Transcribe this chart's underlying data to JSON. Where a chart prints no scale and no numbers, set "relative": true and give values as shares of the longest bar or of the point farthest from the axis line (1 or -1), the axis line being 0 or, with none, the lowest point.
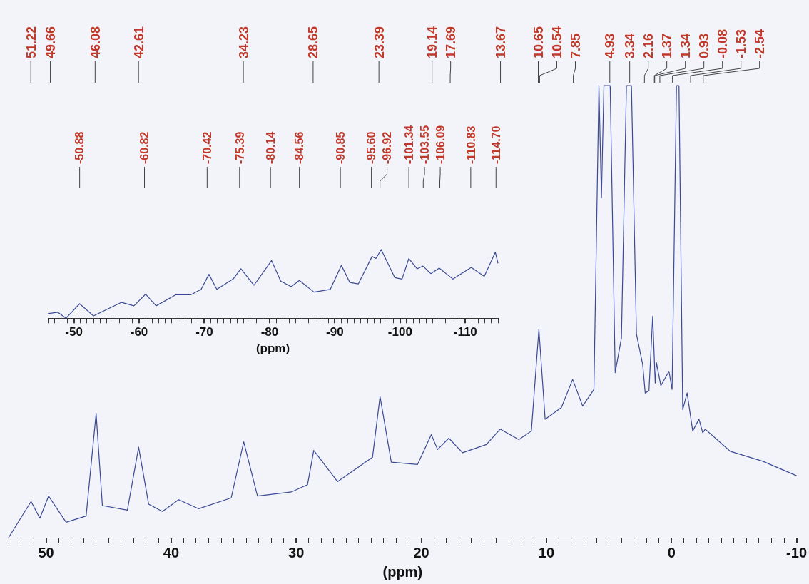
{
  "chart_data": [
    {
      "type": "line",
      "xlabel": "(ppm)",
      "relative": true,
      "xlim": [
        53,
        -10
      ],
      "xticks": [
        {
          "value": 53,
          "label": null
        },
        {
          "value": 52,
          "label": null
        },
        {
          "value": 51,
          "label": null
        },
        50,
        {
          "value": 49,
          "label": null
        },
        {
          "value": 48,
          "label": null
        },
        {
          "value": 47,
          "label": null
        },
        {
          "value": 46,
          "label": null
        },
        {
          "value": 45,
          "label": null
        },
        {
          "value": 44,
          "label": null
        },
        {
          "value": 43,
          "label": null
        },
        {
          "value": 42,
          "label": null
        },
        {
          "value": 41,
          "label": null
        },
        40,
        {
          "value": 39,
          "label": null
        },
        {
          "value": 38,
          "label": null
        },
        {
          "value": 37,
          "label": null
        },
        {
          "value": 36,
          "label": null
        },
        {
          "value": 35,
          "label": null
        },
        {
          "value": 34,
          "label": null
        },
        {
          "value": 33,
          "label": null
        },
        {
          "value": 32,
          "label": null
        },
        {
          "value": 31,
          "label": null
        },
        30,
        {
          "value": 29,
          "label": null
        },
        {
          "value": 28,
          "label": null
        },
        {
          "value": 27,
          "label": null
        },
        {
          "value": 26,
          "label": null
        },
        {
          "value": 25,
          "label": null
        },
        {
          "value": 24,
          "label": null
        },
        {
          "value": 23,
          "label": null
        },
        {
          "value": 22,
          "label": null
        },
        {
          "value": 21,
          "label": null
        },
        20,
        {
          "value": 19,
          "label": null
        },
        {
          "value": 18,
          "label": null
        },
        {
          "value": 17,
          "label": null
        },
        {
          "value": 16,
          "label": null
        },
        {
          "value": 15,
          "label": null
        },
        {
          "value": 14,
          "label": null
        },
        {
          "value": 13,
          "label": null
        },
        {
          "value": 12,
          "label": null
        },
        {
          "value": 11,
          "label": null
        },
        10,
        {
          "value": 9,
          "label": null
        },
        {
          "value": 8,
          "label": null
        },
        {
          "value": 7,
          "label": null
        },
        {
          "value": 6,
          "label": null
        },
        {
          "value": 5,
          "label": null
        },
        {
          "value": 4,
          "label": null
        },
        {
          "value": 3,
          "label": null
        },
        {
          "value": 2,
          "label": null
        },
        {
          "value": 1,
          "label": null
        },
        0,
        {
          "value": -1,
          "label": null
        },
        {
          "value": -2,
          "label": null
        },
        {
          "value": -3,
          "label": null
        },
        {
          "value": -4,
          "label": null
        },
        {
          "value": -5,
          "label": null
        },
        {
          "value": -6,
          "label": null
        },
        {
          "value": -7,
          "label": null
        },
        {
          "value": -8,
          "label": null
        },
        {
          "value": -9,
          "label": null
        },
        -10
      ],
      "x": [
        53.0,
        51.2,
        50.5,
        49.8,
        48.4,
        46.8,
        46.0,
        45.5,
        43.5,
        42.6,
        41.8,
        40.7,
        39.4,
        37.8,
        35.2,
        34.2,
        33.1,
        30.4,
        29.1,
        28.6,
        26.7,
        23.9,
        23.3,
        22.4,
        20.3,
        19.2,
        18.7,
        17.8,
        16.7,
        14.8,
        13.7,
        12.2,
        11.2,
        10.6,
        10.1,
        8.8,
        7.9,
        7.1,
        6.2,
        5.8,
        5.6,
        5.4,
        5.2,
        4.9,
        4.5,
        4.0,
        3.6,
        3.2,
        2.8,
        2.3,
        2.1,
        1.8,
        1.5,
        1.3,
        1.2,
        0.85,
        0.2,
        -0.05,
        -0.4,
        -0.6,
        -0.9,
        -1.25,
        -1.7,
        -2.2,
        -2.5,
        -2.7,
        -4.7,
        -7.3,
        -10
      ],
      "series": [
        {
          "color": "#3b4a95",
          "values": [
            0,
            0.08,
            0.043,
            0.092,
            0.034,
            0.048,
            0.275,
            0.071,
            0.061,
            0.2,
            0.074,
            0.058,
            0.084,
            0.064,
            0.088,
            0.212,
            0.092,
            0.101,
            0.117,
            0.193,
            0.124,
            0.178,
            0.312,
            0.167,
            0.162,
            0.228,
            0.195,
            0.22,
            0.188,
            0.206,
            0.24,
            0.217,
            0.236,
            0.461,
            0.262,
            0.288,
            0.35,
            0.291,
            0.328,
            1,
            0.752,
            1,
            1,
            1,
            0.365,
            0.442,
            1,
            1,
            0.45,
            0.383,
            0.32,
            0.325,
            0.49,
            0.342,
            0.387,
            0.336,
            0.368,
            0.328,
            1,
            1,
            0.283,
            0.32,
            0.236,
            0.262,
            0.232,
            0.24,
            0.191,
            0.169,
            0.137
          ]
        }
      ],
      "annotations": [
        {
          "text": "51.22",
          "x": 51.22
        },
        {
          "text": "49.66",
          "x": 49.66
        },
        {
          "text": "46.08",
          "x": 46.08
        },
        {
          "text": "42.61",
          "x": 42.61
        },
        {
          "text": "34.23",
          "x": 34.23
        },
        {
          "text": "28.65",
          "x": 28.65
        },
        {
          "text": "23.39",
          "x": 23.39
        },
        {
          "text": "19.14",
          "x": 19.14
        },
        {
          "text": "17.69",
          "x": 17.69
        },
        {
          "text": "13.67",
          "x": 13.67
        },
        {
          "text": "10.65",
          "x": 10.65
        },
        {
          "text": "10.54",
          "x": 10.54
        },
        {
          "text": "7.85",
          "x": 7.85
        },
        {
          "text": "4.93",
          "x": 4.93
        },
        {
          "text": "3.34",
          "x": 3.34
        },
        {
          "text": "2.16",
          "x": 2.16
        },
        {
          "text": "1.37",
          "x": 1.37
        },
        {
          "text": "1.34",
          "x": 1.34
        },
        {
          "text": "0.93",
          "x": 0.93
        },
        {
          "text": "-0.08",
          "x": -0.08
        },
        {
          "text": "-1.53",
          "x": -1.53
        },
        {
          "text": "-2.54",
          "x": -2.54
        }
      ]
    },
    {
      "type": "line",
      "xlabel": "(ppm)",
      "relative": true,
      "xlim": [
        -46,
        -115
      ],
      "xticks": [
        {
          "value": -46,
          "label": null
        },
        {
          "value": -47,
          "label": null
        },
        {
          "value": -48,
          "label": null
        },
        {
          "value": -49,
          "label": null
        },
        -50,
        {
          "value": -51,
          "label": null
        },
        {
          "value": -52,
          "label": null
        },
        {
          "value": -53,
          "label": null
        },
        {
          "value": -54,
          "label": null
        },
        {
          "value": -55,
          "label": null
        },
        {
          "value": -56,
          "label": null
        },
        {
          "value": -57,
          "label": null
        },
        {
          "value": -58,
          "label": null
        },
        {
          "value": -59,
          "label": null
        },
        -60,
        {
          "value": -61,
          "label": null
        },
        {
          "value": -62,
          "label": null
        },
        {
          "value": -63,
          "label": null
        },
        {
          "value": -64,
          "label": null
        },
        {
          "value": -65,
          "label": null
        },
        {
          "value": -66,
          "label": null
        },
        {
          "value": -67,
          "label": null
        },
        {
          "value": -68,
          "label": null
        },
        {
          "value": -69,
          "label": null
        },
        -70,
        {
          "value": -71,
          "label": null
        },
        {
          "value": -72,
          "label": null
        },
        {
          "value": -73,
          "label": null
        },
        {
          "value": -74,
          "label": null
        },
        {
          "value": -75,
          "label": null
        },
        {
          "value": -76,
          "label": null
        },
        {
          "value": -77,
          "label": null
        },
        {
          "value": -78,
          "label": null
        },
        {
          "value": -79,
          "label": null
        },
        -80,
        {
          "value": -81,
          "label": null
        },
        {
          "value": -82,
          "label": null
        },
        {
          "value": -83,
          "label": null
        },
        {
          "value": -84,
          "label": null
        },
        {
          "value": -85,
          "label": null
        },
        {
          "value": -86,
          "label": null
        },
        {
          "value": -87,
          "label": null
        },
        {
          "value": -88,
          "label": null
        },
        {
          "value": -89,
          "label": null
        },
        -90,
        {
          "value": -91,
          "label": null
        },
        {
          "value": -92,
          "label": null
        },
        {
          "value": -93,
          "label": null
        },
        {
          "value": -94,
          "label": null
        },
        {
          "value": -95,
          "label": null
        },
        {
          "value": -96,
          "label": null
        },
        {
          "value": -97,
          "label": null
        },
        {
          "value": -98,
          "label": null
        },
        {
          "value": -99,
          "label": null
        },
        -100,
        {
          "value": -101,
          "label": null
        },
        {
          "value": -102,
          "label": null
        },
        {
          "value": -103,
          "label": null
        },
        {
          "value": -104,
          "label": null
        },
        {
          "value": -105,
          "label": null
        },
        {
          "value": -106,
          "label": null
        },
        {
          "value": -107,
          "label": null
        },
        {
          "value": -108,
          "label": null
        },
        {
          "value": -109,
          "label": null
        },
        -110,
        {
          "value": -111,
          "label": null
        },
        {
          "value": -112,
          "label": null
        },
        {
          "value": -113,
          "label": null
        },
        {
          "value": -114,
          "label": null
        },
        {
          "value": -115,
          "label": null
        }
      ],
      "x": [
        -46,
        -47.5,
        -48.8,
        -50.88,
        -53.0,
        -57.3,
        -59.2,
        -61.0,
        -62.6,
        -65.6,
        -67.9,
        -69.5,
        -70.7,
        -71.9,
        -74.4,
        -75.6,
        -77.6,
        -80.3,
        -81.7,
        -83.3,
        -84.56,
        -86.8,
        -89.3,
        -91.0,
        -92.3,
        -93.6,
        -95.7,
        -96.3,
        -97.1,
        -99.2,
        -100.3,
        -101.34,
        -102.6,
        -103.5,
        -104.7,
        -106.0,
        -108.1,
        -110.9,
        -112.9,
        -114.6,
        -115
      ],
      "series": [
        {
          "color": "#3b4a95",
          "values": [
            0.065,
            0.087,
            0,
            0.21,
            0.033,
            0.23,
            0.18,
            0.35,
            0.18,
            0.34,
            0.34,
            0.42,
            0.64,
            0.42,
            0.57,
            0.72,
            0.48,
            0.84,
            0.54,
            0.46,
            0.55,
            0.38,
            0.42,
            0.77,
            0.52,
            0.5,
            0.9,
            0.87,
            1,
            0.59,
            0.57,
            0.87,
            0.72,
            0.76,
            0.65,
            0.73,
            0.57,
            0.74,
            0.61,
            0.96,
            0.8
          ]
        }
      ],
      "annotations": [
        {
          "text": "-50.88",
          "x": -50.88
        },
        {
          "text": "-60.82",
          "x": -60.82
        },
        {
          "text": "-70.42",
          "x": -70.42
        },
        {
          "text": "-75.39",
          "x": -75.39
        },
        {
          "text": "-80.14",
          "x": -80.14
        },
        {
          "text": "-84.56",
          "x": -84.56
        },
        {
          "text": "-90.85",
          "x": -90.85
        },
        {
          "text": "-95.60",
          "x": -95.6
        },
        {
          "text": "-96.92",
          "x": -96.92
        },
        {
          "text": "-101.34",
          "x": -101.34
        },
        {
          "text": "-103.55",
          "x": -103.55
        },
        {
          "text": "-106.09",
          "x": -106.09
        },
        {
          "text": "-110.83",
          "x": -110.83
        },
        {
          "text": "-114.70",
          "x": -114.7
        }
      ]
    }
  ]
}
